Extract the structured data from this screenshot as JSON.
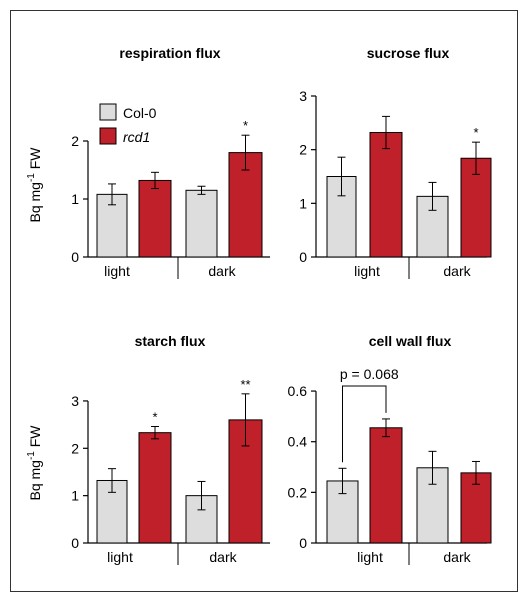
{
  "colors": {
    "Col-0": "#dddddd",
    "rcd1": "#c0202a",
    "axis": "#000000",
    "error": "#000000"
  },
  "legend": [
    {
      "name": "Col-0",
      "italic": false
    },
    {
      "name": "rcd1",
      "italic": true
    }
  ],
  "ylabel_parts": [
    "Bq  mg",
    "-1",
    " FW"
  ],
  "chart_data": [
    {
      "type": "bar",
      "title": "respiration flux",
      "categories": [
        "light",
        "dark"
      ],
      "series": [
        {
          "name": "Col-0",
          "values": [
            1.08,
            1.15
          ],
          "errors": [
            0.18,
            0.07
          ]
        },
        {
          "name": "rcd1",
          "values": [
            1.32,
            1.8
          ],
          "errors": [
            0.14,
            0.3
          ]
        }
      ],
      "ylim": [
        0,
        2.5
      ],
      "yticks": [
        0,
        1,
        2
      ],
      "ylabel": "Bq mg-1 FW",
      "significance": [
        {
          "series": "rcd1",
          "category": "dark",
          "label": "*"
        }
      ],
      "legend": "top-left"
    },
    {
      "type": "bar",
      "title": "sucrose flux",
      "categories": [
        "light",
        "dark"
      ],
      "series": [
        {
          "name": "Col-0",
          "values": [
            1.5,
            1.13
          ],
          "errors": [
            0.36,
            0.26
          ]
        },
        {
          "name": "rcd1",
          "values": [
            2.32,
            1.84
          ],
          "errors": [
            0.3,
            0.3
          ]
        }
      ],
      "ylim": [
        0,
        3
      ],
      "yticks": [
        0,
        1,
        2,
        3
      ],
      "significance": [
        {
          "series": "rcd1",
          "category": "dark",
          "label": "*"
        }
      ]
    },
    {
      "type": "bar",
      "title": "starch flux",
      "categories": [
        "light",
        "dark"
      ],
      "series": [
        {
          "name": "Col-0",
          "values": [
            1.32,
            1.0
          ],
          "errors": [
            0.25,
            0.3
          ]
        },
        {
          "name": "rcd1",
          "values": [
            2.33,
            2.6
          ],
          "errors": [
            0.13,
            0.55
          ]
        }
      ],
      "ylim": [
        0,
        3.4
      ],
      "yticks": [
        0,
        1,
        2,
        3
      ],
      "ylabel": "Bq mg-1 FW",
      "significance": [
        {
          "series": "rcd1",
          "category": "light",
          "label": "*"
        },
        {
          "series": "rcd1",
          "category": "dark",
          "label": "**"
        }
      ]
    },
    {
      "type": "bar",
      "title": "cell wall flux",
      "categories": [
        "light",
        "dark"
      ],
      "series": [
        {
          "name": "Col-0",
          "values": [
            0.245,
            0.297
          ],
          "errors": [
            0.05,
            0.065
          ]
        },
        {
          "name": "rcd1",
          "values": [
            0.455,
            0.277
          ],
          "errors": [
            0.035,
            0.045
          ]
        }
      ],
      "ylim": [
        0,
        0.62
      ],
      "yticks": [
        0,
        0.2,
        0.4,
        0.6
      ],
      "annotation": {
        "text": "p = 0.068",
        "category": "light"
      }
    }
  ]
}
